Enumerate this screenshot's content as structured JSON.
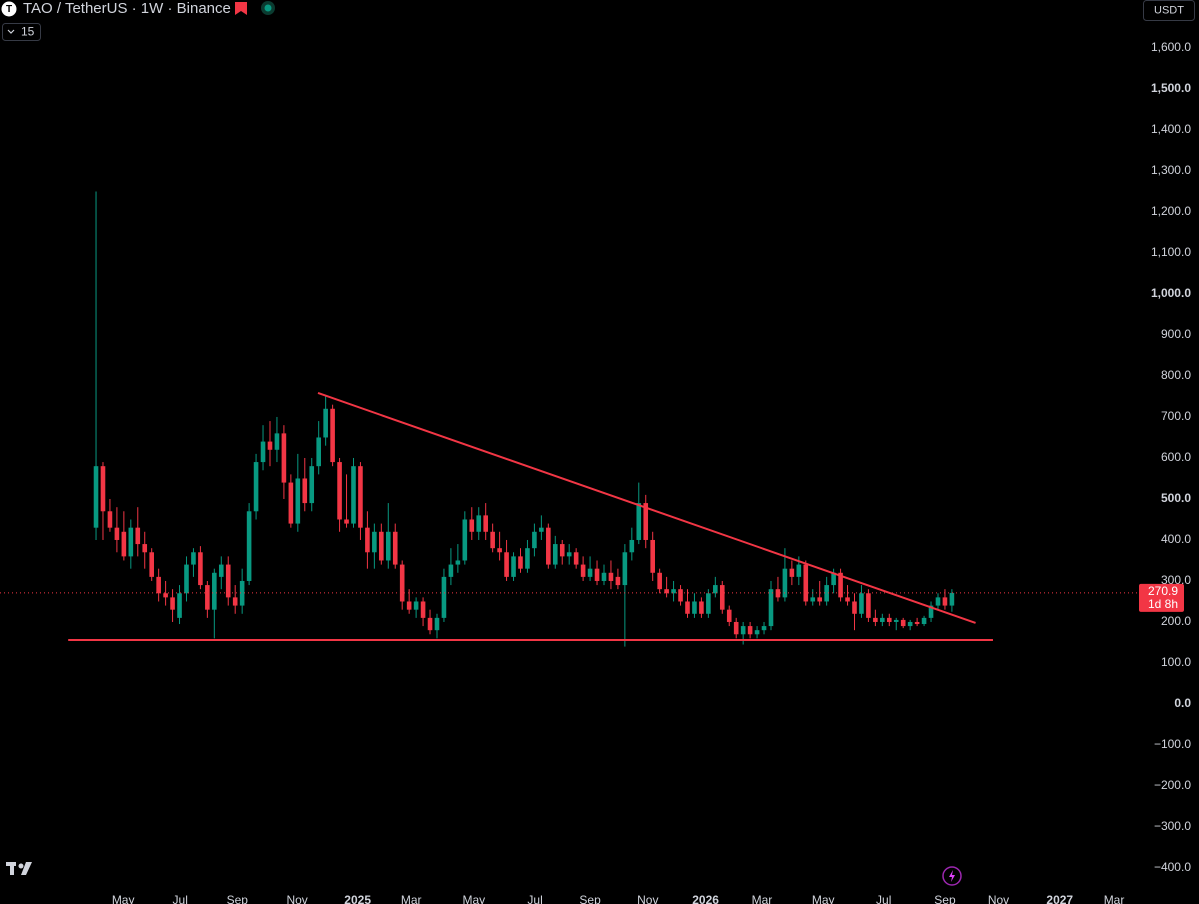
{
  "chart_data": {
    "type": "candlestick",
    "title": "TAO / TetherUS · 1W · Binance",
    "interval_badge": "15",
    "currency": "USDT",
    "countdown": "1d 8h",
    "up_color": "#089981",
    "down_color": "#f23645",
    "line_color": "#f23645",
    "ylim": [
      -453.7,
      1717
    ],
    "xlim": [
      -13.8,
      149.6
    ],
    "yticks": [
      {
        "value": -400,
        "label": "−400.0"
      },
      {
        "value": -300,
        "label": "−300.0"
      },
      {
        "value": -200,
        "label": "−200.0"
      },
      {
        "value": -100,
        "label": "−100.0"
      },
      {
        "value": 0,
        "label": "0.0"
      },
      {
        "value": 100,
        "label": "100.0"
      },
      {
        "value": 200,
        "label": "200.0"
      },
      {
        "value": 300,
        "label": "300.0"
      },
      {
        "value": 400,
        "label": "400.0"
      },
      {
        "value": 500,
        "label": "500.0"
      },
      {
        "value": 600,
        "label": "600.0"
      },
      {
        "value": 700,
        "label": "700.0"
      },
      {
        "value": 800,
        "label": "800.0"
      },
      {
        "value": 900,
        "label": "900.0"
      },
      {
        "value": 1000,
        "label": "1,000.0"
      },
      {
        "value": 1100,
        "label": "1,100.0"
      },
      {
        "value": 1200,
        "label": "1,200.0"
      },
      {
        "value": 1300,
        "label": "1,300.0"
      },
      {
        "value": 1400,
        "label": "1,400.0"
      },
      {
        "value": 1500,
        "label": "1,500.0"
      },
      {
        "value": 1600,
        "label": "1,600.0"
      }
    ],
    "xticks": [
      {
        "value": 3.9,
        "label": "May"
      },
      {
        "value": 12.1,
        "label": "Jul"
      },
      {
        "value": 20.3,
        "label": "Sep"
      },
      {
        "value": 28.9,
        "label": "Nov"
      },
      {
        "value": 37.6,
        "label": "2025"
      },
      {
        "value": 45.3,
        "label": "Mar"
      },
      {
        "value": 54.3,
        "label": "May"
      },
      {
        "value": 63.1,
        "label": "Jul"
      },
      {
        "value": 71,
        "label": "Sep"
      },
      {
        "value": 79.3,
        "label": "Nov"
      },
      {
        "value": 87.6,
        "label": "2026"
      },
      {
        "value": 95.7,
        "label": "Mar"
      },
      {
        "value": 104.5,
        "label": "May"
      },
      {
        "value": 113.2,
        "label": "Jul"
      },
      {
        "value": 122,
        "label": "Sep"
      },
      {
        "value": 129.7,
        "label": "Nov"
      },
      {
        "value": 138.5,
        "label": "2027"
      },
      {
        "value": 146.3,
        "label": "Mar"
      }
    ],
    "trendlines": [
      {
        "x": [
          31.9,
          126.4
        ],
        "y": [
          758.5,
          197.6
        ]
      },
      {
        "x": [
          -4,
          128.9
        ],
        "y": [
          156,
          156
        ]
      }
    ],
    "ohlc": [
      [
        430,
        1250,
        400,
        580
      ],
      [
        580,
        590,
        400,
        470
      ],
      [
        470,
        500,
        420,
        430
      ],
      [
        430,
        480,
        370,
        400
      ],
      [
        420,
        470,
        350,
        360
      ],
      [
        360,
        450,
        330,
        430
      ],
      [
        430,
        480,
        360,
        390
      ],
      [
        390,
        420,
        330,
        370
      ],
      [
        370,
        380,
        300,
        310
      ],
      [
        310,
        330,
        250,
        270
      ],
      [
        270,
        300,
        240,
        260
      ],
      [
        260,
        280,
        200,
        230
      ],
      [
        210,
        290,
        195,
        270
      ],
      [
        270,
        360,
        250,
        340
      ],
      [
        340,
        380,
        310,
        370
      ],
      [
        370,
        385,
        280,
        290
      ],
      [
        290,
        300,
        210,
        230
      ],
      [
        230,
        330,
        160,
        320
      ],
      [
        310,
        360,
        280,
        340
      ],
      [
        340,
        360,
        240,
        260
      ],
      [
        260,
        290,
        220,
        240
      ],
      [
        240,
        330,
        220,
        300
      ],
      [
        300,
        490,
        290,
        470
      ],
      [
        470,
        610,
        450,
        590
      ],
      [
        590,
        680,
        570,
        640
      ],
      [
        640,
        690,
        580,
        620
      ],
      [
        620,
        700,
        590,
        660
      ],
      [
        660,
        680,
        500,
        540
      ],
      [
        540,
        560,
        430,
        440
      ],
      [
        440,
        610,
        420,
        550
      ],
      [
        550,
        600,
        470,
        490
      ],
      [
        490,
        600,
        470,
        580
      ],
      [
        580,
        690,
        560,
        650
      ],
      [
        650,
        750,
        630,
        720
      ],
      [
        720,
        730,
        580,
        590
      ],
      [
        590,
        600,
        420,
        450
      ],
      [
        450,
        560,
        430,
        440
      ],
      [
        440,
        600,
        430,
        580
      ],
      [
        580,
        590,
        400,
        430
      ],
      [
        430,
        470,
        330,
        370
      ],
      [
        370,
        440,
        330,
        420
      ],
      [
        420,
        440,
        340,
        350
      ],
      [
        350,
        490,
        330,
        420
      ],
      [
        420,
        440,
        330,
        340
      ],
      [
        340,
        350,
        230,
        250
      ],
      [
        250,
        280,
        220,
        230
      ],
      [
        230,
        260,
        210,
        250
      ],
      [
        250,
        260,
        190,
        210
      ],
      [
        210,
        230,
        170,
        180
      ],
      [
        180,
        220,
        160,
        210
      ],
      [
        210,
        330,
        200,
        310
      ],
      [
        310,
        380,
        290,
        340
      ],
      [
        340,
        390,
        320,
        350
      ],
      [
        350,
        470,
        340,
        450
      ],
      [
        450,
        480,
        400,
        420
      ],
      [
        420,
        480,
        400,
        460
      ],
      [
        460,
        490,
        400,
        420
      ],
      [
        420,
        440,
        370,
        380
      ],
      [
        380,
        420,
        350,
        370
      ],
      [
        370,
        400,
        300,
        310
      ],
      [
        310,
        370,
        300,
        360
      ],
      [
        360,
        380,
        320,
        330
      ],
      [
        330,
        400,
        320,
        380
      ],
      [
        380,
        440,
        360,
        420
      ],
      [
        420,
        460,
        400,
        430
      ],
      [
        430,
        440,
        330,
        340
      ],
      [
        340,
        410,
        330,
        390
      ],
      [
        390,
        400,
        340,
        360
      ],
      [
        360,
        390,
        340,
        370
      ],
      [
        370,
        380,
        330,
        340
      ],
      [
        340,
        360,
        300,
        310
      ],
      [
        310,
        360,
        300,
        330
      ],
      [
        330,
        350,
        290,
        300
      ],
      [
        300,
        340,
        290,
        320
      ],
      [
        320,
        350,
        280,
        300
      ],
      [
        310,
        330,
        280,
        290
      ],
      [
        290,
        390,
        140,
        370
      ],
      [
        370,
        430,
        350,
        400
      ],
      [
        400,
        540,
        390,
        490
      ],
      [
        490,
        510,
        380,
        400
      ],
      [
        400,
        420,
        300,
        320
      ],
      [
        320,
        330,
        270,
        280
      ],
      [
        280,
        310,
        260,
        270
      ],
      [
        270,
        300,
        250,
        280
      ],
      [
        280,
        290,
        240,
        250
      ],
      [
        250,
        280,
        210,
        220
      ],
      [
        220,
        270,
        210,
        250
      ],
      [
        250,
        260,
        210,
        220
      ],
      [
        220,
        280,
        210,
        270
      ],
      [
        270,
        310,
        260,
        290
      ],
      [
        290,
        300,
        220,
        230
      ],
      [
        230,
        240,
        190,
        200
      ],
      [
        200,
        210,
        160,
        170
      ],
      [
        170,
        200,
        145,
        190
      ],
      [
        190,
        200,
        160,
        170
      ],
      [
        170,
        190,
        160,
        180
      ],
      [
        180,
        200,
        170,
        190
      ],
      [
        190,
        300,
        180,
        280
      ],
      [
        280,
        310,
        250,
        260
      ],
      [
        260,
        380,
        250,
        330
      ],
      [
        330,
        350,
        290,
        310
      ],
      [
        310,
        360,
        290,
        340
      ],
      [
        340,
        350,
        240,
        250
      ],
      [
        250,
        280,
        240,
        260
      ],
      [
        260,
        300,
        240,
        250
      ],
      [
        250,
        310,
        240,
        290
      ],
      [
        290,
        330,
        270,
        320
      ],
      [
        320,
        330,
        250,
        260
      ],
      [
        260,
        290,
        240,
        250
      ],
      [
        250,
        270,
        180,
        220
      ],
      [
        220,
        290,
        210,
        270
      ],
      [
        270,
        280,
        200,
        210
      ],
      [
        210,
        230,
        190,
        200
      ],
      [
        200,
        220,
        190,
        210
      ],
      [
        210,
        220,
        190,
        200
      ],
      [
        200,
        210,
        180,
        205
      ],
      [
        205,
        210,
        185,
        190
      ],
      [
        190,
        205,
        180,
        200
      ],
      [
        200,
        210,
        190,
        195
      ],
      [
        195,
        215,
        190,
        210
      ],
      [
        210,
        250,
        200,
        240
      ],
      [
        240,
        270,
        230,
        260
      ],
      [
        260,
        280,
        230,
        240
      ],
      [
        240,
        280,
        225,
        270.9
      ]
    ]
  }
}
